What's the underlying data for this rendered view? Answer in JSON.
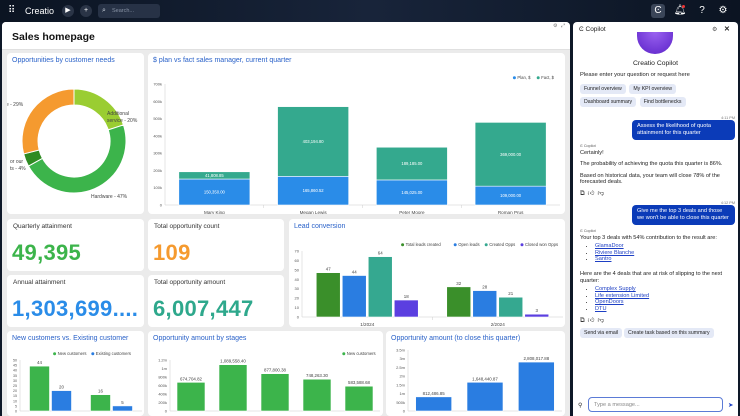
{
  "topbar": {
    "logo": "Creatio",
    "search_placeholder": "Search...",
    "icons": [
      "apps-grid-icon",
      "play-icon",
      "plus-icon",
      "search-icon",
      "copilot-icon",
      "bell-icon",
      "help-icon",
      "gear-icon"
    ]
  },
  "page": {
    "title": "Sales homepage"
  },
  "colors": {
    "green": "#3cb44b",
    "orange": "#f59a2f",
    "blue": "#2a8ce8",
    "teal": "#2ea88c",
    "title_blue": "#2a62c9",
    "user_bubble": "#0b3bb8"
  },
  "kpis": [
    {
      "title": "Quarterly attainment",
      "value": "49,395",
      "color": "#3cb44b"
    },
    {
      "title": "Total opportunity count",
      "value": "109",
      "color": "#f59a2f"
    },
    {
      "title": "Annual attainment",
      "value": "1,303,699....",
      "color": "#2a8ce8"
    },
    {
      "title": "Total opportunity amount",
      "value": "6,007,447",
      "color": "#2ea88c"
    }
  ],
  "chart_data": [
    {
      "id": "needs",
      "type": "pie",
      "title": "Opportunities by customer needs",
      "slices": [
        {
          "label": "Additional service - 20%",
          "value": 20,
          "color": "#9acd32"
        },
        {
          "label": "Hardware - 47%",
          "value": 47,
          "color": "#3cb44b"
        },
        {
          "label": "or our ts - 4%",
          "value": 4,
          "color": "#2e8b22"
        },
        {
          "label": "vare - 29%",
          "value": 29,
          "color": "#f59a2f"
        }
      ]
    },
    {
      "id": "planfact",
      "type": "bar",
      "stacked": true,
      "title": "$ plan vs fact sales manager, current quarter",
      "categories": [
        "Mary King",
        "Megan Lewis",
        "Peter Moore",
        "Roman Prus"
      ],
      "series": [
        {
          "name": "Plan, $",
          "color": "#2a8ce8",
          "values": [
            150350.0,
            165860.52,
            145025.0,
            109000.0
          ],
          "labels": [
            "150,350.00",
            "165,860.52",
            "145,025.00",
            "109,000.00"
          ]
        },
        {
          "name": "Fact, $",
          "color": "#34a98e",
          "values": [
            41808.85,
            403194.8,
            189185.0,
            369000.0
          ],
          "labels": [
            "41,808.85",
            "403,194.80",
            "189,185.00",
            "369,000.00"
          ]
        }
      ],
      "ylim": [
        0,
        700000
      ],
      "yticks": [
        "0",
        "100k",
        "200k",
        "300k",
        "400k",
        "500k",
        "600k",
        "700k"
      ],
      "legend": "top-right",
      "grid": false
    },
    {
      "id": "leads",
      "type": "bar",
      "title": "Lead conversion",
      "categories": [
        "1/2024",
        "2/2024"
      ],
      "series": [
        {
          "name": "Total leads created",
          "color": "#3a8f2a",
          "values": [
            47,
            32
          ]
        },
        {
          "name": "Open leads",
          "color": "#2a7de1",
          "values": [
            44,
            28
          ]
        },
        {
          "name": "Created Opps",
          "color": "#35a890",
          "values": [
            64,
            21
          ]
        },
        {
          "name": "Closed won Opps",
          "color": "#5b3fe0",
          "values": [
            18,
            3
          ]
        }
      ],
      "ylim": [
        0,
        70
      ],
      "yticks": [
        "0",
        "10",
        "20",
        "30",
        "40",
        "50",
        "60",
        "70"
      ],
      "legend": "top-right"
    },
    {
      "id": "newexist",
      "type": "bar",
      "title": "New customers vs. Existing customer",
      "categories": [
        "",
        ""
      ],
      "series": [
        {
          "name": "New customers",
          "color": "#3cb44b",
          "values": [
            44,
            16
          ]
        },
        {
          "name": "Existing customers",
          "color": "#2a7de1",
          "values": [
            20,
            5
          ]
        }
      ],
      "ylim": [
        0,
        50
      ],
      "yticks": [
        "0",
        "5",
        "10",
        "15",
        "20",
        "25",
        "30",
        "35",
        "40",
        "45",
        "50"
      ],
      "legend": "top-right"
    },
    {
      "id": "stages",
      "type": "bar",
      "title": "Opportunity amount by stages",
      "categories": [
        "",
        "",
        "",
        "",
        ""
      ],
      "series": [
        {
          "name": "New customers",
          "color": "#3cb44b",
          "values": [
            674704.82,
            1089558.4,
            877800.38,
            748263.3,
            583588.68
          ],
          "labels": [
            "674,704.82",
            "1,089,558.40",
            "877,800.38",
            "748,263.30",
            "583,588.68"
          ]
        }
      ],
      "ylim": [
        0,
        1200000
      ],
      "yticks": [
        "0",
        "200k",
        "400k",
        "600k",
        "800k",
        "1m",
        "1.2m"
      ],
      "legend": "top-right"
    },
    {
      "id": "toclose",
      "type": "bar",
      "title": "Opportunity amount (to close this quarter)",
      "categories": [
        "",
        "",
        ""
      ],
      "series": [
        {
          "color": "#2a7de1",
          "values": [
            812486.85,
            1648440.87,
            2808017.88
          ],
          "labels": [
            "812,486.85",
            "1,648,440.87",
            "2,808,017.88"
          ]
        }
      ],
      "ylim": [
        0,
        3500000
      ],
      "yticks": [
        "0",
        "500k",
        "1m",
        "1.5m",
        "2m",
        "2.5m",
        "3m",
        "3.5m"
      ]
    }
  ],
  "copilot": {
    "header": "Copilot",
    "name": "Creatio Copilot",
    "prompt": "Please enter your question or request here",
    "suggestions": [
      "Funnel overview",
      "My KPI overview",
      "Dashboard summary",
      "Find bottlenecks"
    ],
    "sender": "Copilot",
    "messages": [
      {
        "time": "4:11 PM",
        "user": "Assess the likelihood of quota attainment for this quarter",
        "reply": [
          "Certainly!",
          "The probability of achieving the quota this quarter is 86%.",
          "Based on historical data, your team will close 78% of the forecasted deals."
        ]
      },
      {
        "time": "4:12 PM",
        "user": "Give me the top 3 deals and those we won't be able to close this quarter",
        "intro": "Your top 3 deals with 54% contribution to the result are:",
        "top": [
          "GlamaDoor",
          "Riviere Blanche",
          "Santro"
        ],
        "risk_intro": "Here are the 4 deals that are at risk of slipping to the next quarter:",
        "risk": [
          "Complex Supply",
          "Life extension Limited",
          "OpenDoors",
          "DTU"
        ]
      }
    ],
    "actions": [
      "Send via email",
      "Create task based on this summary"
    ],
    "input_placeholder": "Type a message..."
  }
}
